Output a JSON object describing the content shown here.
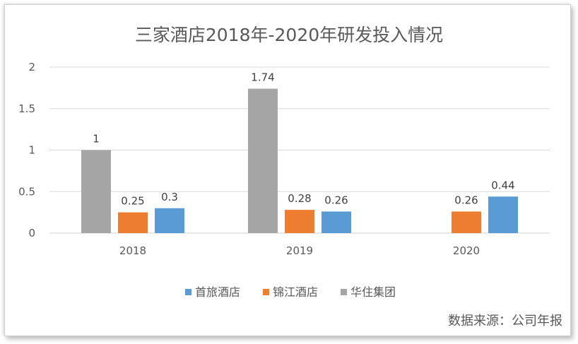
{
  "chart_data": {
    "type": "bar",
    "title": "三家酒店2018年-2020年研发投入情况",
    "categories": [
      "2018",
      "2019",
      "2020"
    ],
    "series": [
      {
        "name": "华住集团",
        "values": [
          1,
          1.74,
          null
        ],
        "color": "#A5A5A5"
      },
      {
        "name": "锦江酒店",
        "values": [
          0.25,
          0.28,
          0.26
        ],
        "color": "#ED7D31"
      },
      {
        "name": "首旅酒店",
        "values": [
          0.3,
          0.26,
          0.44
        ],
        "color": "#5B9BD5"
      }
    ],
    "legend_order": [
      "首旅酒店",
      "锦江酒店",
      "华住集团"
    ],
    "ylim": [
      0,
      2
    ],
    "yticks": [
      "0",
      "0.5",
      "1",
      "1.5",
      "2"
    ],
    "grid": true,
    "legend_position": "bottom",
    "xlabel": "",
    "ylabel": ""
  },
  "source_note": "数据来源：公司年报"
}
